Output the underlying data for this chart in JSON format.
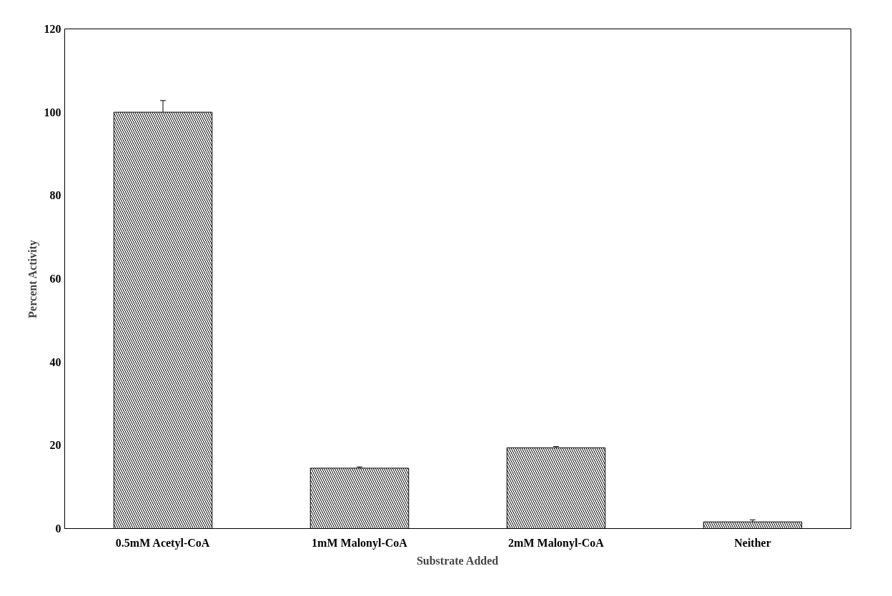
{
  "chart_data": {
    "type": "bar",
    "xlabel": "Substrate Added",
    "ylabel": "Percent Activity",
    "categories": [
      "0.5mM Acetyl-CoA",
      "1mM Malonyl-CoA",
      "2mM Malonyl-CoA",
      "Neither"
    ],
    "values": [
      100,
      14.5,
      19.4,
      1.6
    ],
    "errors": [
      2.8,
      0.3,
      0.3,
      0.5
    ],
    "color": "#000000",
    "ylim": [
      0,
      120
    ],
    "yticks": [
      0,
      20,
      40,
      60,
      80,
      100,
      120
    ],
    "grid": false
  }
}
